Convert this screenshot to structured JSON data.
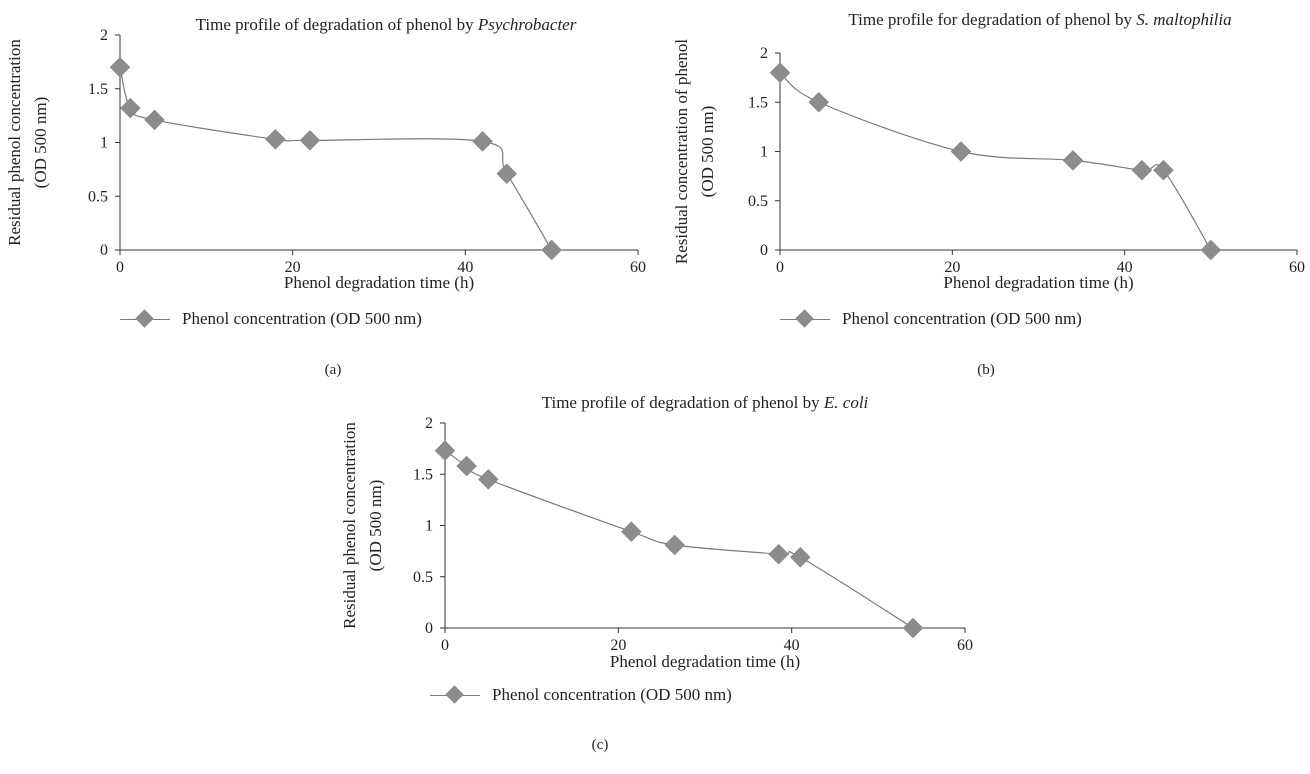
{
  "colors": {
    "marker": "#8c8c8c",
    "line": "#7a7a7a",
    "axis": "#333333"
  },
  "panels": [
    {
      "label": "(a)",
      "legend_label": "Phenol concentration (OD 500 nm)",
      "legend_icon": "diamond-line-marker"
    },
    {
      "label": "(b)",
      "legend_label": "Phenol concentration (OD 500 nm)",
      "legend_icon": "diamond-line-marker"
    },
    {
      "label": "(c)",
      "legend_label": "Phenol concentration (OD 500 nm)",
      "legend_icon": "diamond-line-marker"
    }
  ],
  "chart_data": [
    {
      "type": "line",
      "title": "Time profile of degradation of phenol by ",
      "title_italic": "Psychrobacter",
      "xlabel": "Phenol degradation time (h)",
      "ylabel": [
        "Residual phenol concentration",
        "(OD 500 nm)"
      ],
      "xlim": [
        0,
        60
      ],
      "ylim": [
        0,
        2
      ],
      "xticks": [
        0,
        20,
        40,
        60
      ],
      "yticks": [
        0,
        0.5,
        1,
        1.5,
        2
      ],
      "grid": false,
      "legend": "bottom",
      "smooth": true,
      "series": [
        {
          "name": "Phenol concentration (OD 500 nm)",
          "x": [
            0,
            1.2,
            4,
            18,
            22,
            42,
            44.8,
            50
          ],
          "y": [
            1.7,
            1.32,
            1.21,
            1.03,
            1.02,
            1.01,
            0.71,
            0.0
          ]
        }
      ]
    },
    {
      "type": "line",
      "title": "Time profile for degradation of phenol by ",
      "title_italic": "S. maltophilia",
      "xlabel": "Phenol degradation time (h)",
      "ylabel": [
        "Residual concentration of phenol",
        "(OD 500 nm)"
      ],
      "xlim": [
        0,
        60
      ],
      "ylim": [
        0,
        2
      ],
      "xticks": [
        0,
        20,
        40,
        60
      ],
      "yticks": [
        0,
        0.5,
        1,
        1.5,
        2
      ],
      "grid": false,
      "legend": "bottom",
      "smooth": true,
      "series": [
        {
          "name": "Phenol concentration (OD 500 nm)",
          "x": [
            0,
            4.5,
            21,
            34,
            42,
            44.5,
            50
          ],
          "y": [
            1.8,
            1.5,
            1.0,
            0.91,
            0.81,
            0.81,
            0.0
          ]
        }
      ]
    },
    {
      "type": "line",
      "title": "Time profile of degradation of phenol by ",
      "title_italic": "E. coli",
      "xlabel": "Phenol degradation time (h)",
      "ylabel": [
        "Residual phenol concentration",
        "(OD 500 nm)"
      ],
      "xlim": [
        0,
        60
      ],
      "ylim": [
        0,
        2
      ],
      "xticks": [
        0,
        20,
        40,
        60
      ],
      "yticks": [
        0,
        0.5,
        1,
        1.5,
        2
      ],
      "grid": false,
      "legend": "bottom",
      "smooth": true,
      "series": [
        {
          "name": "Phenol concentration (OD 500 nm)",
          "x": [
            0,
            2.5,
            5,
            21.5,
            26.5,
            38.5,
            41,
            54
          ],
          "y": [
            1.73,
            1.58,
            1.45,
            0.94,
            0.81,
            0.72,
            0.69,
            0.0
          ]
        }
      ]
    }
  ]
}
